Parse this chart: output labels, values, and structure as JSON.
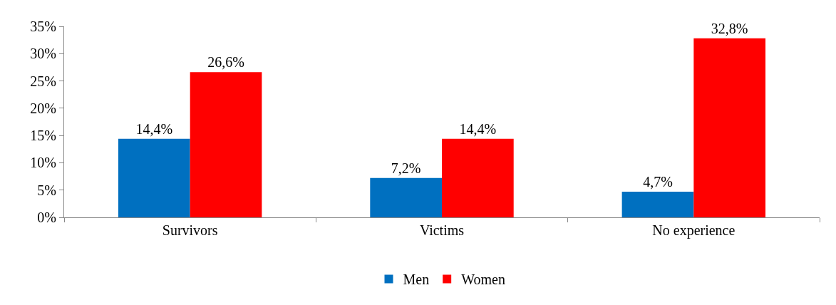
{
  "chart_data": {
    "type": "bar",
    "categories": [
      "Survivors",
      "Victims",
      "No experience"
    ],
    "series": [
      {
        "name": "Men",
        "color": "#0070c0",
        "values": [
          14.4,
          7.2,
          4.7
        ],
        "value_labels": [
          "14,4%",
          "7,2%",
          "4,7%"
        ]
      },
      {
        "name": "Women",
        "color": "#ff0000",
        "values": [
          26.6,
          14.4,
          32.8
        ],
        "value_labels": [
          "26,6%",
          "14,4%",
          "32,8%"
        ]
      }
    ],
    "ylim": [
      0,
      35
    ],
    "yticks": [
      {
        "value": 0,
        "label": "0%"
      },
      {
        "value": 5,
        "label": "5%"
      },
      {
        "value": 10,
        "label": "10%"
      },
      {
        "value": 15,
        "label": "15%"
      },
      {
        "value": 20,
        "label": "20%"
      },
      {
        "value": 25,
        "label": "25%"
      },
      {
        "value": 30,
        "label": "30%"
      },
      {
        "value": 35,
        "label": "35%"
      }
    ],
    "grid": false,
    "legend": "bottom"
  }
}
